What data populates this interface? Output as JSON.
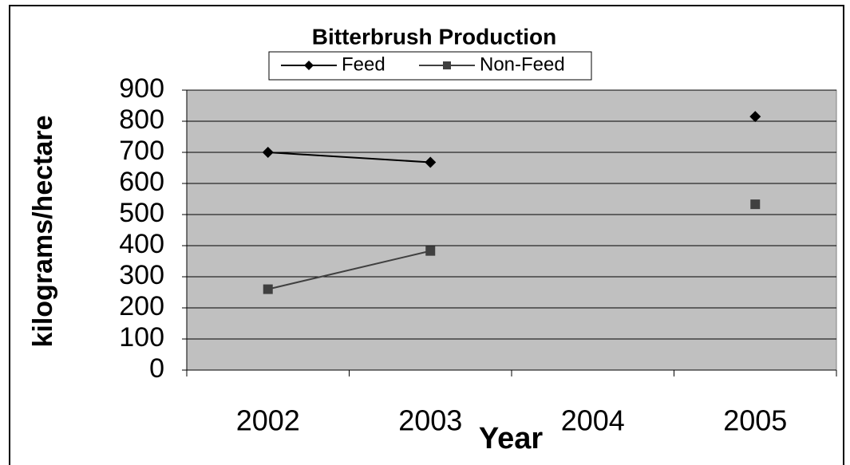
{
  "chart_data": {
    "type": "line",
    "title": "Bitterbrush Production",
    "x_label": "Year",
    "y_label": "kilograms/hectare",
    "categories": [
      "2002",
      "2003",
      "2004",
      "2005"
    ],
    "series": [
      {
        "name": "Feed",
        "color": "#000000",
        "marker": "diamond",
        "values": [
          700,
          668,
          null,
          815
        ]
      },
      {
        "name": "Non-Feed",
        "color": "#404040",
        "marker": "square",
        "values": [
          260,
          383,
          null,
          533
        ]
      }
    ],
    "ylim": [
      0,
      900
    ],
    "yticks": [
      0,
      100,
      200,
      300,
      400,
      500,
      600,
      700,
      800,
      900
    ],
    "grid": true,
    "plot_background": "#c0c0c0",
    "legend": "top"
  }
}
